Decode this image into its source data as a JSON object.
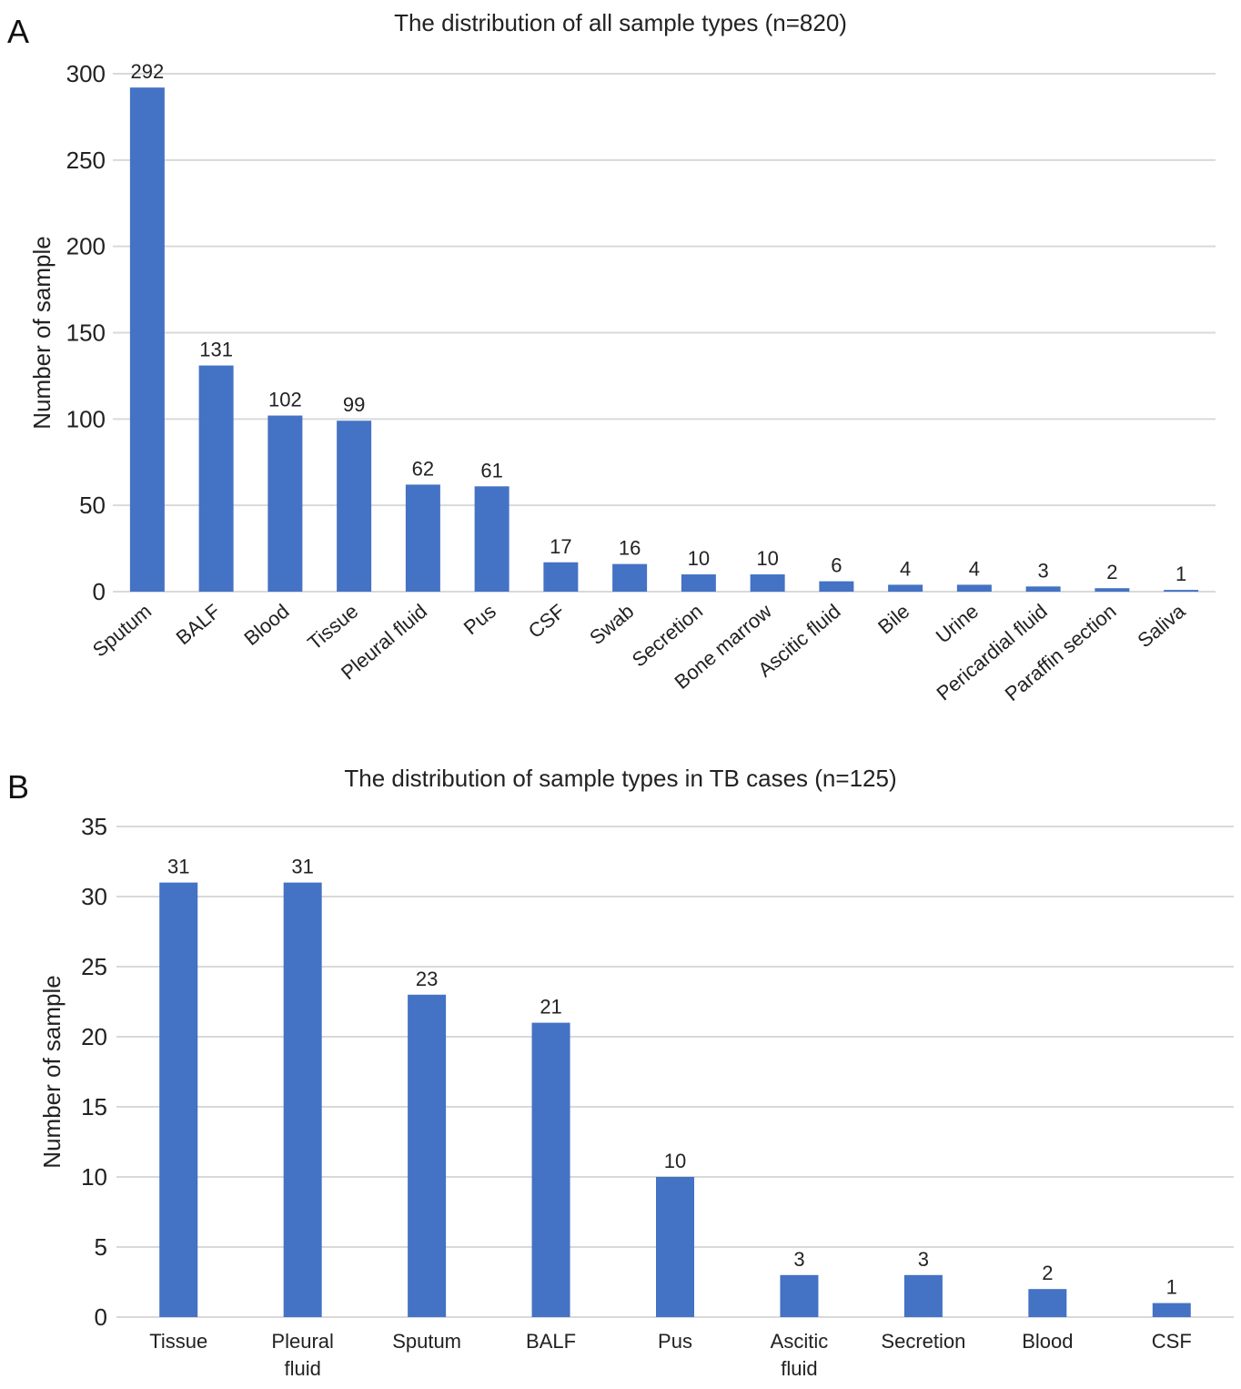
{
  "panels": [
    {
      "letter": "A",
      "title": "The distribution of all sample types (n=820)"
    },
    {
      "letter": "B",
      "title": "The distribution of sample types in TB cases (n=125)"
    }
  ],
  "chart_data": [
    {
      "type": "bar",
      "title": "The distribution of all sample types (n=820)",
      "xlabel": "",
      "ylabel": "Number of sample",
      "ylim": [
        0,
        300
      ],
      "yticks": [
        0,
        50,
        100,
        150,
        200,
        250,
        300
      ],
      "grid": true,
      "bar_color": "#4472c4",
      "categories": [
        "Sputum",
        "BALF",
        "Blood",
        "Tissue",
        "Pleural fluid",
        "Pus",
        "CSF",
        "Swab",
        "Secretion",
        "Bone marrow",
        "Ascitic fluid",
        "Bile",
        "Urine",
        "Pericardial fluid",
        "Paraffin section",
        "Saliva"
      ],
      "values": [
        292,
        131,
        102,
        99,
        62,
        61,
        17,
        16,
        10,
        10,
        6,
        4,
        4,
        3,
        2,
        1
      ],
      "data_labels": [
        "292",
        "131",
        "102",
        "99",
        "62",
        "61",
        "17",
        "16",
        "10",
        "10",
        "6",
        "4",
        "4",
        "3",
        "2",
        "1"
      ],
      "tick_label_rotation": "rotated"
    },
    {
      "type": "bar",
      "title": "The distribution of sample types in TB cases (n=125)",
      "xlabel": "",
      "ylabel": "Number of sample",
      "ylim": [
        0,
        35
      ],
      "yticks": [
        0,
        5,
        10,
        15,
        20,
        25,
        30,
        35
      ],
      "grid": true,
      "bar_color": "#4472c4",
      "categories": [
        "Tissue",
        "Pleural fluid",
        "Sputum",
        "BALF",
        "Pus",
        "Ascitic fluid",
        "Secretion",
        "Blood",
        "CSF"
      ],
      "category_lines": [
        [
          "Tissue"
        ],
        [
          "Pleural",
          "fluid"
        ],
        [
          "Sputum"
        ],
        [
          "BALF"
        ],
        [
          "Pus"
        ],
        [
          "Ascitic",
          "fluid"
        ],
        [
          "Secretion"
        ],
        [
          "Blood"
        ],
        [
          "CSF"
        ]
      ],
      "values": [
        31,
        31,
        23,
        21,
        10,
        3,
        3,
        2,
        1
      ],
      "data_labels": [
        "31",
        "31",
        "23",
        "21",
        "10",
        "3",
        "3",
        "2",
        "1"
      ],
      "tick_label_rotation": "horizontal"
    }
  ]
}
